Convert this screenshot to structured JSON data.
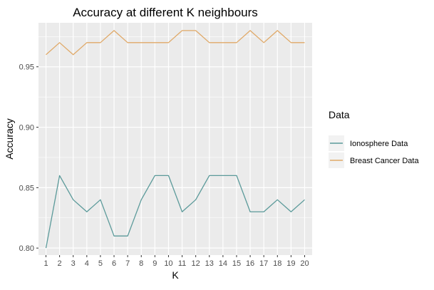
{
  "chart_data": {
    "type": "line",
    "title": "Accuracy at different K neighbours",
    "xlabel": "K",
    "ylabel": "Accuracy",
    "x": [
      1,
      2,
      3,
      4,
      5,
      6,
      7,
      8,
      9,
      10,
      11,
      12,
      13,
      14,
      15,
      16,
      17,
      18,
      19,
      20
    ],
    "xlim": [
      0.45,
      20.55
    ],
    "ylim": [
      0.7942,
      0.9864
    ],
    "y_ticks": [
      "0.80",
      "0.85",
      "0.90",
      "0.95"
    ],
    "y_tick_values": [
      0.8,
      0.85,
      0.9,
      0.95
    ],
    "x_ticks": [
      "1",
      "2",
      "3",
      "4",
      "5",
      "6",
      "7",
      "8",
      "9",
      "10",
      "11",
      "12",
      "13",
      "14",
      "15",
      "16",
      "17",
      "18",
      "19",
      "20"
    ],
    "grid": true,
    "legend": {
      "title": "Data",
      "position": "right"
    },
    "series": [
      {
        "name": "Ionosphere Data",
        "color": "#5b9a9a",
        "values": [
          0.8,
          0.86,
          0.84,
          0.83,
          0.84,
          0.81,
          0.81,
          0.84,
          0.86,
          0.86,
          0.83,
          0.84,
          0.86,
          0.86,
          0.86,
          0.83,
          0.83,
          0.84,
          0.83,
          0.84
        ]
      },
      {
        "name": "Breast Cancer Data",
        "color": "#e0a968",
        "values": [
          0.96,
          0.97,
          0.96,
          0.97,
          0.97,
          0.98,
          0.97,
          0.97,
          0.97,
          0.97,
          0.98,
          0.98,
          0.97,
          0.97,
          0.97,
          0.98,
          0.97,
          0.98,
          0.97,
          0.97
        ]
      }
    ]
  }
}
